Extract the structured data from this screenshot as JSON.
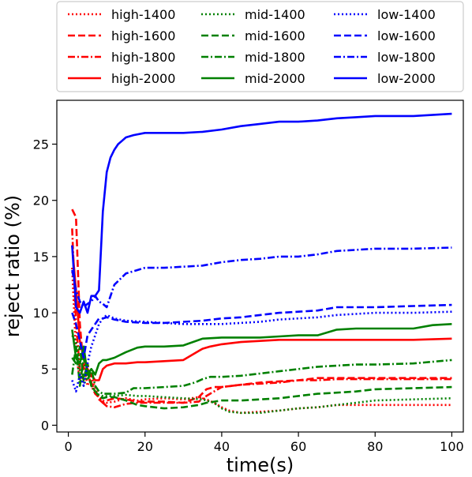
{
  "chart_data": {
    "type": "line",
    "title": "",
    "xlabel": "time(s)",
    "ylabel": "reject ratio (%)",
    "xlim": [
      -3,
      103
    ],
    "ylim": [
      -0.6,
      28.9
    ],
    "xticks": [
      0,
      20,
      40,
      60,
      80,
      100
    ],
    "yticks": [
      0,
      5,
      10,
      15,
      20,
      25
    ],
    "grid": false,
    "legend": {
      "placement": "top",
      "columns": 3
    },
    "series": [
      {
        "name": "high-1400",
        "color": "#ff0000",
        "dash": "dotted",
        "x": [
          1,
          2,
          3,
          4,
          5,
          6,
          7,
          8,
          9,
          10,
          12,
          15,
          18,
          20,
          25,
          30,
          34,
          36,
          38,
          40,
          42,
          45,
          50,
          55,
          60,
          65,
          70,
          75,
          80,
          90,
          100
        ],
        "y": [
          14.0,
          6.5,
          4.0,
          5.5,
          3.5,
          4.5,
          3.3,
          2.5,
          2.2,
          2.0,
          2.1,
          2.4,
          2.2,
          2.3,
          2.4,
          2.3,
          2.5,
          2.3,
          2.0,
          1.6,
          1.3,
          1.1,
          1.2,
          1.3,
          1.5,
          1.6,
          1.8,
          1.8,
          1.8,
          1.8,
          1.8
        ]
      },
      {
        "name": "high-1600",
        "color": "#ff0000",
        "dash": "dashed",
        "x": [
          1,
          2,
          3,
          4,
          5,
          6,
          7,
          8,
          9,
          10,
          12,
          15,
          18,
          20,
          25,
          30,
          34,
          36,
          38,
          40,
          45,
          50,
          55,
          60,
          65,
          70,
          75,
          80,
          90,
          100
        ],
        "y": [
          19.2,
          18.5,
          9.0,
          5.0,
          5.5,
          3.8,
          3.0,
          2.3,
          2.0,
          2.2,
          2.4,
          2.3,
          2.1,
          2.1,
          2.1,
          2.0,
          2.5,
          3.2,
          3.4,
          3.4,
          3.6,
          3.8,
          3.9,
          4.0,
          4.2,
          4.2,
          4.2,
          4.2,
          4.2,
          4.2
        ]
      },
      {
        "name": "high-1800",
        "color": "#ff0000",
        "dash": "dashdot",
        "x": [
          1,
          2,
          3,
          4,
          5,
          6,
          7,
          8,
          9,
          10,
          12,
          15,
          18,
          20,
          25,
          30,
          34,
          36,
          38,
          40,
          45,
          50,
          55,
          60,
          65,
          70,
          75,
          80,
          90,
          100
        ],
        "y": [
          17.5,
          9.0,
          5.0,
          4.0,
          5.0,
          3.5,
          2.8,
          2.5,
          2.0,
          1.7,
          1.6,
          1.9,
          2.0,
          2.0,
          2.0,
          2.0,
          2.1,
          2.6,
          3.0,
          3.4,
          3.6,
          3.7,
          3.8,
          4.0,
          4.0,
          4.1,
          4.1,
          4.1,
          4.1,
          4.1
        ]
      },
      {
        "name": "high-2000",
        "color": "#ff0000",
        "dash": "solid",
        "x": [
          1,
          2,
          3,
          4,
          5,
          6,
          7,
          8,
          9,
          10,
          12,
          15,
          18,
          20,
          25,
          30,
          33,
          35,
          37,
          40,
          45,
          50,
          55,
          60,
          65,
          70,
          75,
          80,
          90,
          100
        ],
        "y": [
          16.0,
          12.0,
          7.5,
          6.0,
          5.0,
          4.5,
          4.0,
          4.0,
          5.0,
          5.3,
          5.5,
          5.5,
          5.6,
          5.6,
          5.7,
          5.8,
          6.4,
          6.8,
          7.0,
          7.2,
          7.4,
          7.5,
          7.6,
          7.6,
          7.6,
          7.6,
          7.6,
          7.6,
          7.6,
          7.7
        ]
      },
      {
        "name": "mid-1400",
        "color": "#008000",
        "dash": "dotted",
        "x": [
          1,
          2,
          3,
          4,
          5,
          6,
          7,
          8,
          9,
          10,
          12,
          15,
          18,
          20,
          25,
          30,
          35,
          38,
          40,
          42,
          45,
          50,
          55,
          60,
          65,
          70,
          75,
          80,
          90,
          100
        ],
        "y": [
          8.0,
          7.5,
          5.0,
          3.5,
          4.5,
          3.5,
          3.0,
          2.7,
          2.6,
          2.6,
          2.6,
          2.7,
          2.6,
          2.6,
          2.5,
          2.4,
          2.3,
          2.0,
          1.5,
          1.2,
          1.1,
          1.1,
          1.3,
          1.5,
          1.6,
          1.8,
          2.0,
          2.2,
          2.3,
          2.4
        ]
      },
      {
        "name": "mid-1600",
        "color": "#008000",
        "dash": "dashed",
        "x": [
          1,
          2,
          3,
          4,
          5,
          6,
          7,
          8,
          9,
          10,
          12,
          15,
          18,
          20,
          25,
          30,
          34,
          36,
          38,
          40,
          45,
          50,
          55,
          60,
          65,
          70,
          75,
          80,
          90,
          100
        ],
        "y": [
          6.0,
          5.5,
          7.0,
          4.0,
          5.5,
          3.5,
          3.0,
          2.6,
          2.4,
          2.5,
          2.5,
          2.2,
          1.8,
          1.7,
          1.5,
          1.6,
          1.8,
          2.0,
          2.1,
          2.2,
          2.2,
          2.3,
          2.4,
          2.6,
          2.8,
          2.9,
          3.0,
          3.2,
          3.3,
          3.4
        ]
      },
      {
        "name": "mid-1800",
        "color": "#008000",
        "dash": "dashdot",
        "x": [
          1,
          2,
          3,
          4,
          5,
          6,
          7,
          8,
          9,
          10,
          12,
          15,
          17,
          20,
          25,
          30,
          33,
          35,
          37,
          40,
          45,
          50,
          55,
          60,
          65,
          70,
          75,
          80,
          90,
          100
        ],
        "y": [
          4.5,
          7.0,
          3.5,
          6.0,
          4.0,
          5.0,
          3.5,
          3.0,
          2.8,
          2.8,
          2.8,
          2.9,
          3.3,
          3.3,
          3.4,
          3.5,
          3.8,
          4.1,
          4.3,
          4.3,
          4.4,
          4.6,
          4.8,
          5.0,
          5.2,
          5.3,
          5.4,
          5.4,
          5.5,
          5.8
        ]
      },
      {
        "name": "mid-2000",
        "color": "#008000",
        "dash": "solid",
        "x": [
          1,
          2,
          3,
          4,
          5,
          6,
          7,
          8,
          9,
          10,
          12,
          15,
          18,
          20,
          25,
          30,
          35,
          40,
          45,
          50,
          55,
          60,
          65,
          70,
          75,
          80,
          90,
          95,
          100
        ],
        "y": [
          8.5,
          6.0,
          5.5,
          7.0,
          4.5,
          5.0,
          4.5,
          5.5,
          5.8,
          5.8,
          6.0,
          6.5,
          6.9,
          7.0,
          7.0,
          7.1,
          7.7,
          7.8,
          7.8,
          7.8,
          7.9,
          8.0,
          8.0,
          8.5,
          8.6,
          8.6,
          8.6,
          8.9,
          9.0
        ]
      },
      {
        "name": "low-1400",
        "color": "#0000ff",
        "dash": "dotted",
        "x": [
          1,
          2,
          3,
          4,
          5,
          6,
          7,
          8,
          9,
          10,
          12,
          15,
          20,
          25,
          30,
          35,
          40,
          45,
          50,
          55,
          60,
          65,
          70,
          75,
          80,
          90,
          100
        ],
        "y": [
          4.0,
          3.0,
          4.5,
          3.5,
          5.5,
          7.0,
          8.0,
          9.0,
          9.5,
          9.8,
          9.5,
          9.3,
          9.2,
          9.1,
          9.0,
          9.0,
          9.0,
          9.1,
          9.2,
          9.4,
          9.5,
          9.6,
          9.8,
          9.9,
          10.0,
          10.0,
          10.1
        ]
      },
      {
        "name": "low-1600",
        "color": "#0000ff",
        "dash": "dashed",
        "x": [
          1,
          2,
          3,
          4,
          5,
          6,
          7,
          8,
          9,
          10,
          12,
          15,
          20,
          25,
          30,
          35,
          40,
          45,
          50,
          55,
          60,
          65,
          70,
          75,
          80,
          90,
          100
        ],
        "y": [
          10.0,
          9.0,
          7.5,
          6.0,
          8.0,
          8.5,
          9.0,
          9.5,
          9.5,
          9.6,
          9.4,
          9.2,
          9.1,
          9.1,
          9.2,
          9.3,
          9.5,
          9.6,
          9.8,
          10.0,
          10.1,
          10.2,
          10.5,
          10.5,
          10.5,
          10.6,
          10.7
        ]
      },
      {
        "name": "low-1800",
        "color": "#0000ff",
        "dash": "dashdot",
        "x": [
          1,
          2,
          3,
          4,
          5,
          6,
          7,
          8,
          9,
          10,
          12,
          15,
          20,
          25,
          30,
          35,
          40,
          45,
          50,
          55,
          60,
          65,
          70,
          75,
          80,
          90,
          100
        ],
        "y": [
          13.8,
          12.0,
          11.0,
          10.5,
          10.8,
          11.0,
          11.5,
          11.0,
          10.8,
          10.5,
          12.5,
          13.5,
          14.0,
          14.0,
          14.1,
          14.2,
          14.5,
          14.7,
          14.8,
          15.0,
          15.0,
          15.2,
          15.5,
          15.6,
          15.7,
          15.7,
          15.8
        ]
      },
      {
        "name": "low-2000",
        "color": "#0000ff",
        "dash": "solid",
        "x": [
          1,
          2,
          3,
          4,
          5,
          6,
          7,
          8,
          9,
          10,
          11,
          12,
          13,
          14,
          15,
          17,
          20,
          25,
          30,
          35,
          40,
          45,
          50,
          55,
          60,
          65,
          70,
          75,
          80,
          90,
          100
        ],
        "y": [
          16.0,
          10.5,
          10.0,
          11.0,
          10.0,
          11.5,
          11.5,
          12.0,
          19.0,
          22.5,
          23.8,
          24.5,
          25.0,
          25.3,
          25.6,
          25.8,
          26.0,
          26.0,
          26.0,
          26.1,
          26.3,
          26.6,
          26.8,
          27.0,
          27.0,
          27.1,
          27.3,
          27.4,
          27.5,
          27.5,
          27.7
        ]
      }
    ]
  }
}
